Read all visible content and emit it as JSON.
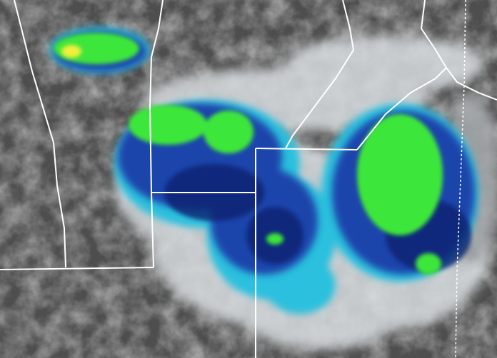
{
  "image": {
    "kind": "infrared satellite image with state borders",
    "colors": {
      "background_dark": "#4a4a4a",
      "background_light": "#9a9a9a",
      "cloud_white": "#e8eef0",
      "cyan": "#29c4e0",
      "blue": "#1a3fa8",
      "navy": "#0c1e6e",
      "green": "#3ee83a",
      "yellow": "#f2f03a",
      "border_line": "#ffffff"
    }
  }
}
